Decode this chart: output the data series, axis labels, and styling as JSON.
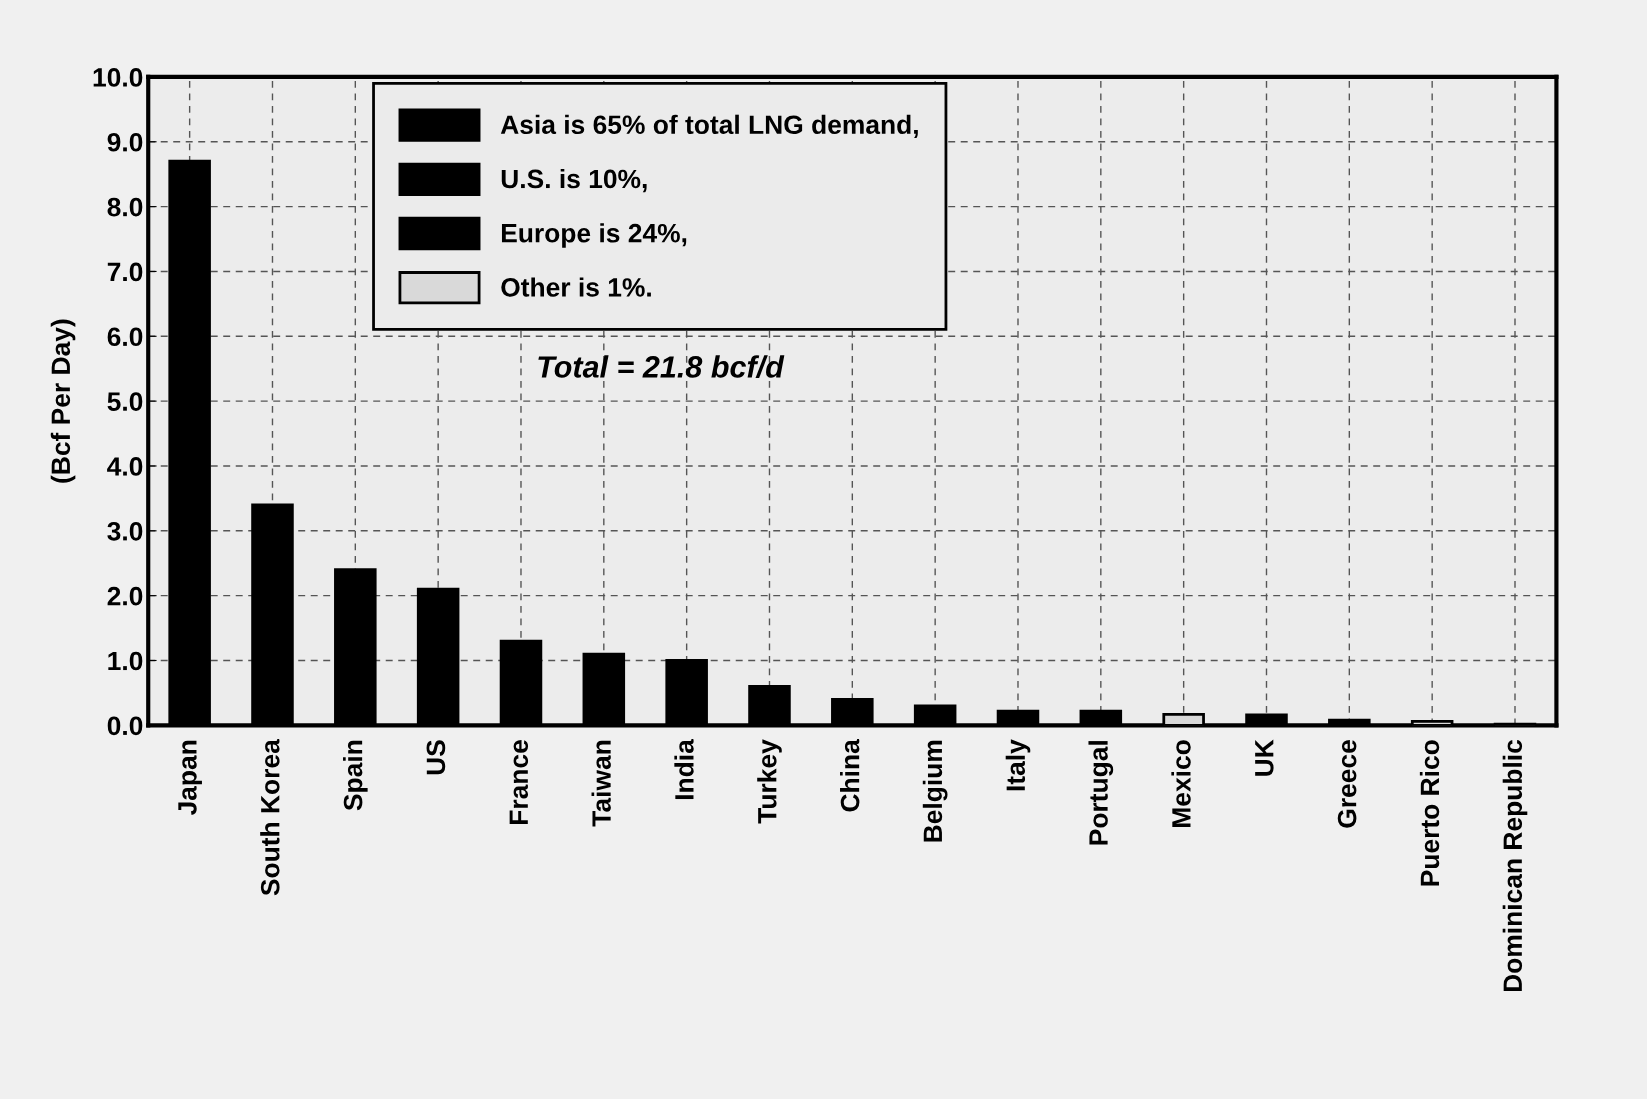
{
  "chart_data": {
    "type": "bar",
    "ylabel": "(Bcf Per Day)",
    "categories": [
      "Japan",
      "South Korea",
      "Spain",
      "US",
      "France",
      "Taiwan",
      "India",
      "Turkey",
      "China",
      "Belgium",
      "Italy",
      "Portugal",
      "Mexico",
      "UK",
      "Greece",
      "Puerto Rico",
      "Dominican Republic"
    ],
    "series": [
      {
        "name": "Asia is 65% of total LNG demand,",
        "color": "#000000",
        "values": [
          8.7,
          3.4,
          null,
          null,
          null,
          1.1,
          1.0,
          null,
          0.4,
          null,
          null,
          null,
          null,
          null,
          null,
          null,
          null
        ]
      },
      {
        "name": "U.S. is 10%,",
        "color": "#000000",
        "values": [
          null,
          null,
          null,
          2.1,
          null,
          null,
          null,
          null,
          null,
          null,
          null,
          null,
          null,
          null,
          null,
          null,
          null
        ]
      },
      {
        "name": "Europe is 24%,",
        "color": "#000000",
        "values": [
          null,
          null,
          2.4,
          null,
          1.3,
          null,
          null,
          0.6,
          null,
          0.3,
          0.22,
          0.22,
          null,
          0.16,
          0.08,
          null,
          null
        ]
      },
      {
        "name": "Other is 1%.",
        "color": "#d9d9d9",
        "values": [
          null,
          null,
          null,
          null,
          null,
          null,
          null,
          null,
          null,
          null,
          null,
          null,
          0.17,
          null,
          null,
          0.06,
          0.02
        ]
      }
    ],
    "ylim": [
      0,
      10
    ],
    "yticks": [
      {
        "value": 0,
        "label": "0.0"
      },
      {
        "value": 1,
        "label": "1.0"
      },
      {
        "value": 2,
        "label": "2.0"
      },
      {
        "value": 3,
        "label": "3.0"
      },
      {
        "value": 4,
        "label": "4.0"
      },
      {
        "value": 5,
        "label": "5.0"
      },
      {
        "value": 6,
        "label": "6.0"
      },
      {
        "value": 7,
        "label": "7.0"
      },
      {
        "value": 8,
        "label": "8.0"
      },
      {
        "value": 9,
        "label": "9.0"
      },
      {
        "value": 10,
        "label": "10.0"
      }
    ],
    "grid": true,
    "legend": "top",
    "annotations": [
      "Total = 21.8 bcf/d"
    ]
  }
}
